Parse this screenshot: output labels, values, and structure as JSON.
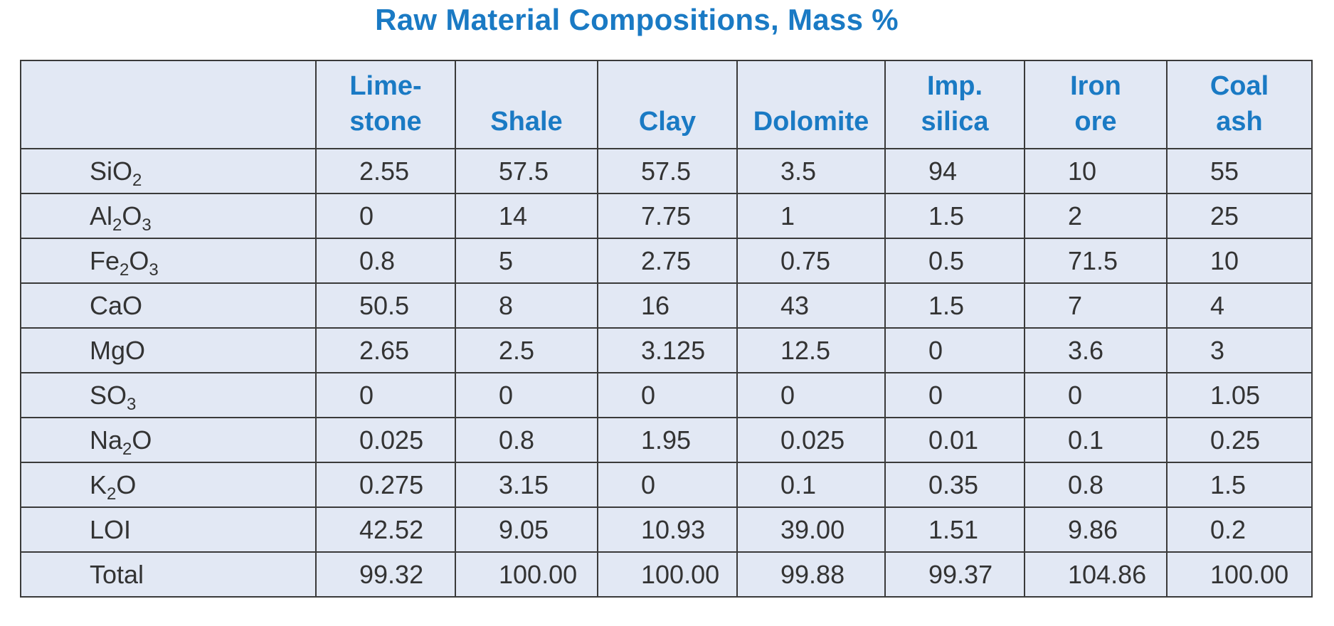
{
  "title": "Raw Material Compositions, Mass %",
  "columns": [
    {
      "line1": "Lime-",
      "line2": "stone"
    },
    {
      "line1": "",
      "line2": "Shale"
    },
    {
      "line1": "",
      "line2": "Clay"
    },
    {
      "line1": "",
      "line2": "Dolomite"
    },
    {
      "line1": "Imp.",
      "line2": "silica"
    },
    {
      "line1": "Iron",
      "line2": "ore"
    },
    {
      "line1": "Coal",
      "line2": "ash"
    }
  ],
  "rows": [
    {
      "label_main": "SiO",
      "label_parts": [
        [
          "SiO",
          ""
        ],
        [
          "2",
          "sub"
        ]
      ],
      "values": [
        "2.55",
        "57.5",
        "57.5",
        "3.5",
        "94",
        "10",
        "55"
      ]
    },
    {
      "label_parts": [
        [
          "Al",
          ""
        ],
        [
          "2",
          "sub"
        ],
        [
          "O",
          ""
        ],
        [
          "3",
          "sub"
        ]
      ],
      "values": [
        "0",
        "14",
        "7.75",
        "1",
        "1.5",
        "2",
        "25"
      ]
    },
    {
      "label_parts": [
        [
          "Fe",
          ""
        ],
        [
          "2",
          "sub"
        ],
        [
          "O",
          ""
        ],
        [
          "3",
          "sub"
        ]
      ],
      "values": [
        "0.8",
        "5",
        "2.75",
        "0.75",
        "0.5",
        "71.5",
        "10"
      ]
    },
    {
      "label_parts": [
        [
          "CaO",
          ""
        ]
      ],
      "values": [
        "50.5",
        "8",
        "16",
        "43",
        "1.5",
        "7",
        "4"
      ]
    },
    {
      "label_parts": [
        [
          "MgO",
          ""
        ]
      ],
      "values": [
        "2.65",
        "2.5",
        "3.125",
        "12.5",
        "0",
        "3.6",
        "3"
      ]
    },
    {
      "label_parts": [
        [
          "SO",
          ""
        ],
        [
          "3",
          "sub"
        ]
      ],
      "values": [
        "0",
        "0",
        "0",
        "0",
        "0",
        "0",
        "1.05"
      ]
    },
    {
      "label_parts": [
        [
          "Na",
          ""
        ],
        [
          "2",
          "sub"
        ],
        [
          "O",
          ""
        ]
      ],
      "values": [
        "0.025",
        "0.8",
        "1.95",
        "0.025",
        "0.01",
        "0.1",
        "0.25"
      ]
    },
    {
      "label_parts": [
        [
          "K",
          ""
        ],
        [
          "2",
          "sub"
        ],
        [
          "O",
          ""
        ]
      ],
      "values": [
        "0.275",
        "3.15",
        "0",
        "0.1",
        "0.35",
        "0.8",
        "1.5"
      ]
    },
    {
      "label_parts": [
        [
          "LOI",
          ""
        ]
      ],
      "values": [
        "42.52",
        "9.05",
        "10.93",
        "39.00",
        "1.51",
        "9.86",
        "0.2"
      ]
    },
    {
      "label_parts": [
        [
          "Total",
          ""
        ]
      ],
      "values": [
        "99.32",
        "100.00",
        "100.00",
        "99.88",
        "99.37",
        "104.86",
        "100.00"
      ]
    }
  ],
  "colors": {
    "title": "#1a7ac4",
    "header_text": "#1a7ac4",
    "cell_bg": "#e2e8f4",
    "border": "#3a3a3a",
    "cell_text": "#333333"
  }
}
